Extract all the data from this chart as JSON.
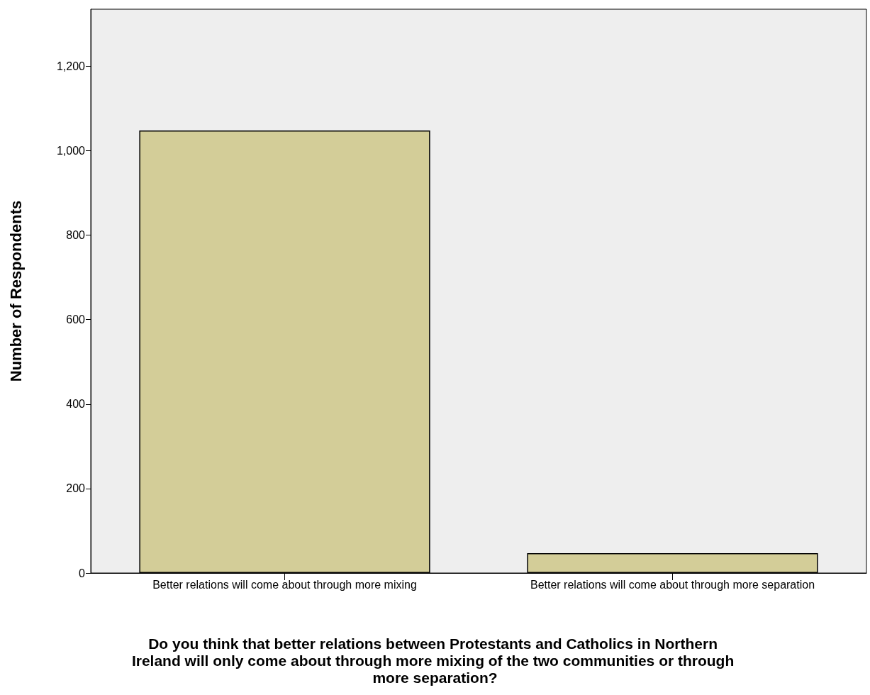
{
  "chart_data": {
    "type": "bar",
    "xlabel": "Do you think that better relations between Protestants and Catholics in Northern Ireland will only come about through more mixing of the two communities or through more separation?",
    "ylabel": "Number of Respondents",
    "categories": [
      "Better relations will come about through more mixing",
      "Better relations will come about through more separation"
    ],
    "values": [
      1048,
      47
    ],
    "color": "#d3cd98",
    "ylim": [
      0,
      1335
    ],
    "yticks": [
      {
        "value": 0,
        "label": "0"
      },
      {
        "value": 200,
        "label": "200"
      },
      {
        "value": 400,
        "label": "400"
      },
      {
        "value": 600,
        "label": "600"
      },
      {
        "value": 800,
        "label": "800"
      },
      {
        "value": 1000,
        "label": "1,000"
      },
      {
        "value": 1200,
        "label": "1,200"
      }
    ],
    "grid": false
  }
}
